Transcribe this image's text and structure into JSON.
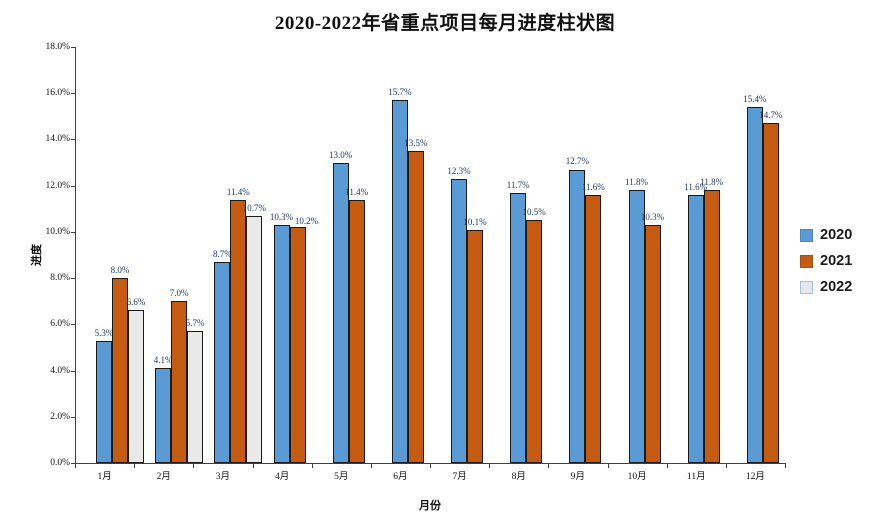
{
  "chart_data": {
    "type": "bar",
    "title": "2020-2022年省重点项目每月进度柱状图",
    "xlabel": "月份",
    "ylabel": "进度",
    "categories": [
      "1月",
      "2月",
      "3月",
      "4月",
      "5月",
      "6月",
      "7月",
      "8月",
      "9月",
      "10月",
      "11月",
      "12月"
    ],
    "series": [
      {
        "name": "2020",
        "color": "#5B9BD5",
        "legend_border": "#4A88C0",
        "values": [
          5.3,
          4.1,
          8.7,
          10.3,
          13.0,
          15.7,
          12.3,
          11.7,
          12.7,
          11.8,
          11.6,
          15.4
        ]
      },
      {
        "name": "2021",
        "color": "#C55A11",
        "legend_border": "#AC4E0E",
        "values": [
          8.0,
          7.0,
          11.4,
          10.2,
          11.4,
          13.5,
          10.1,
          10.5,
          11.6,
          10.3,
          11.8,
          14.7
        ]
      },
      {
        "name": "2022",
        "color": "#E9E9E9",
        "legend_fill": "#E4E8EE",
        "legend_border": "#9FC1E2",
        "values": [
          6.6,
          5.7,
          10.7,
          null,
          null,
          null,
          null,
          null,
          null,
          null,
          null,
          null
        ]
      }
    ],
    "ylim": [
      0,
      18
    ],
    "ytick_step": 2,
    "ytick_labels": [
      "0.0%",
      "2.0%",
      "4.0%",
      "6.0%",
      "8.0%",
      "10.0%",
      "12.0%",
      "14.0%",
      "16.0%",
      "18.0%"
    ],
    "data_label_format": "one-decimal-percent",
    "data_label_color": "#203864",
    "bar_border_color": "#1a1a1a",
    "axis_color": "#404040",
    "legend_position": "right",
    "grid": false
  }
}
